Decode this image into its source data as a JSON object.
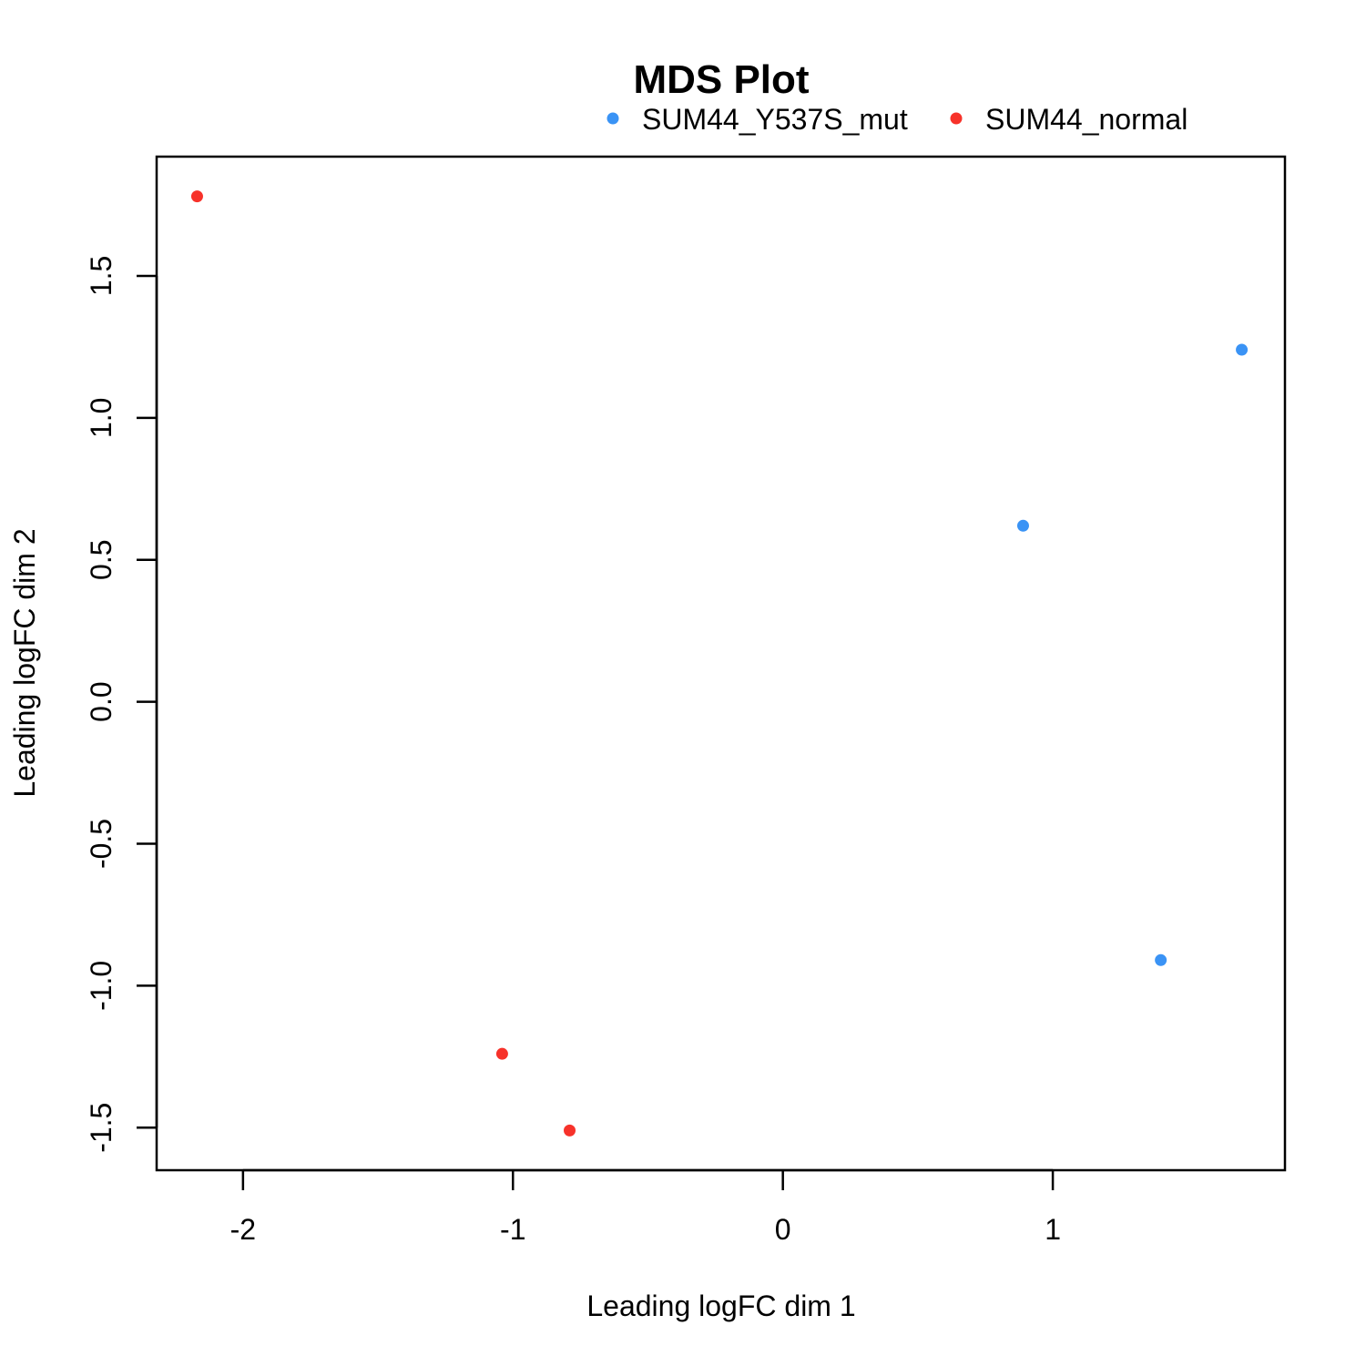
{
  "chart_data": {
    "type": "scatter",
    "title": "MDS Plot",
    "xlabel": "Leading logFC dim 1",
    "ylabel": "Leading logFC dim 2",
    "xlim": [
      -2.32,
      1.86
    ],
    "ylim": [
      -1.65,
      1.92
    ],
    "xticks": [
      -2,
      -1,
      0,
      1
    ],
    "xtick_labels": [
      "-2",
      "-1",
      "0",
      "1"
    ],
    "yticks": [
      -1.5,
      -1.0,
      -0.5,
      0.0,
      0.5,
      1.0,
      1.5
    ],
    "ytick_labels": [
      "-1.5",
      "-1.0",
      "-0.5",
      "0.0",
      "0.5",
      "1.0",
      "1.5"
    ],
    "grid": false,
    "legend_position": "top",
    "series": [
      {
        "name": "SUM44_Y537S_mut",
        "color": "#3a93f5",
        "points": [
          {
            "x": 0.89,
            "y": 0.62
          },
          {
            "x": 1.7,
            "y": 1.24
          },
          {
            "x": 1.4,
            "y": -0.91
          }
        ]
      },
      {
        "name": "SUM44_normal",
        "color": "#f7322a",
        "points": [
          {
            "x": -2.17,
            "y": 1.78
          },
          {
            "x": -1.04,
            "y": -1.24
          },
          {
            "x": -0.79,
            "y": -1.51
          }
        ]
      }
    ]
  }
}
